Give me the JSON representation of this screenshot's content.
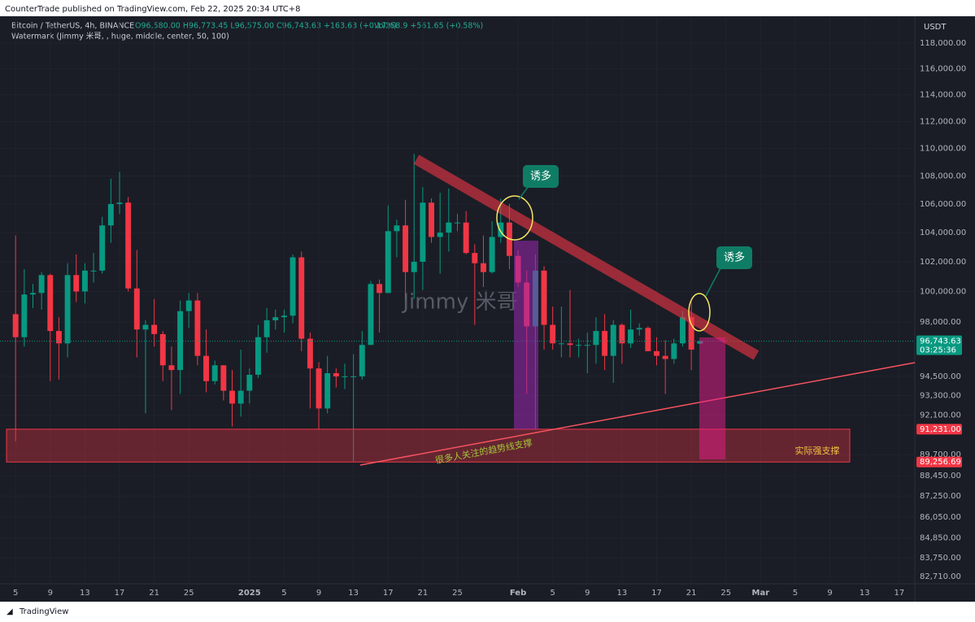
{
  "header": {
    "publisher": "CounterTrade published on TradingView.com, Feb 22, 2025 20:34 UTC+8",
    "symbol": "Bitcoin / TetherUS, 4h, BINANCE",
    "ohlc": "O96,580.00 H96,773.45 L96,575.00 C96,743.63 +163.63 (+0.17%)",
    "volume": "Vol258.9 +561.65 (+0.58%)",
    "indicator": "Watermark (Jimmy 米哥, , huge, middle, center, 50, 100)",
    "currency": "USDT"
  },
  "footer": {
    "logo": "TradingView"
  },
  "chart_data": {
    "type": "candlestick",
    "log_scale": true,
    "watermark": "Jimmy 米哥",
    "annotations": {
      "callout_1": "诱多",
      "callout_2": "诱多",
      "trendline": "很多人关注的趋势线支撑",
      "zone": "实际强支撑"
    },
    "countdown": "03:25:36",
    "price_tags": [
      {
        "value": 96743.63,
        "label": "96,743.63",
        "color": "#089981"
      },
      {
        "value": 91231,
        "label": "91,231.00",
        "color": "#f23645"
      },
      {
        "value": 89256.69,
        "label": "89,256.69",
        "color": "#f23645"
      }
    ],
    "up_color": "#089981",
    "down_color": "#f23645",
    "xlim": [
      -1.8,
      103.8
    ],
    "ylim": [
      82300,
      120000
    ],
    "xticks": [
      {
        "value": 0,
        "label": "5"
      },
      {
        "value": 4,
        "label": "9"
      },
      {
        "value": 8,
        "label": "13"
      },
      {
        "value": 12,
        "label": "17"
      },
      {
        "value": 16,
        "label": "21"
      },
      {
        "value": 20,
        "label": "25"
      },
      {
        "value": 27,
        "label": "2025"
      },
      {
        "value": 31,
        "label": "5"
      },
      {
        "value": 35,
        "label": "9"
      },
      {
        "value": 39,
        "label": "13"
      },
      {
        "value": 43,
        "label": "17"
      },
      {
        "value": 47,
        "label": "21"
      },
      {
        "value": 51,
        "label": "25"
      },
      {
        "value": 58,
        "label": "Feb"
      },
      {
        "value": 62,
        "label": "5"
      },
      {
        "value": 66,
        "label": "9"
      },
      {
        "value": 70,
        "label": "13"
      },
      {
        "value": 74,
        "label": "17"
      },
      {
        "value": 78,
        "label": "21"
      },
      {
        "value": 82,
        "label": "25"
      },
      {
        "value": 86,
        "label": "Mar"
      },
      {
        "value": 90,
        "label": "5"
      },
      {
        "value": 94,
        "label": "9"
      },
      {
        "value": 98,
        "label": "13"
      },
      {
        "value": 102,
        "label": "17"
      }
    ],
    "yticks": [
      {
        "value": 118000,
        "label": "118,000.00"
      },
      {
        "value": 116000,
        "label": "116,000.00"
      },
      {
        "value": 114000,
        "label": "114,000.00"
      },
      {
        "value": 112000,
        "label": "112,000.00"
      },
      {
        "value": 110000,
        "label": "110,000.00"
      },
      {
        "value": 108000,
        "label": "108,000.00"
      },
      {
        "value": 106000,
        "label": "106,000.00"
      },
      {
        "value": 104000,
        "label": "104,000.00"
      },
      {
        "value": 102000,
        "label": "102,000.00"
      },
      {
        "value": 100000,
        "label": "100,000.00"
      },
      {
        "value": 98000,
        "label": "98,000.00"
      },
      {
        "value": 94500,
        "label": "94,500.00"
      },
      {
        "value": 93300,
        "label": "93,300.00"
      },
      {
        "value": 92100,
        "label": "92,100.00"
      },
      {
        "value": 89700,
        "label": "89,700.00"
      },
      {
        "value": 88450,
        "label": "88,450.00"
      },
      {
        "value": 87250,
        "label": "87,250.00"
      },
      {
        "value": 86050,
        "label": "86,050.00"
      },
      {
        "value": 84850,
        "label": "84,850.00"
      },
      {
        "value": 83750,
        "label": "83,750.00"
      },
      {
        "value": 82710,
        "label": "82,710.00"
      }
    ],
    "x": [
      0,
      1,
      2,
      3,
      4,
      5,
      6,
      7,
      8,
      9,
      10,
      11,
      12,
      13,
      14,
      15,
      16,
      17,
      18,
      19,
      20,
      21,
      22,
      23,
      24,
      25,
      26,
      27,
      28,
      29,
      30,
      31,
      32,
      33,
      34,
      35,
      36,
      37,
      38,
      39,
      40,
      41,
      42,
      43,
      44,
      45,
      46,
      47,
      48,
      49,
      50,
      51,
      52,
      53,
      54,
      55,
      56,
      57,
      58,
      59,
      60,
      61,
      62,
      63,
      64,
      65,
      66,
      67,
      68,
      69,
      70,
      71,
      72,
      73,
      74,
      75,
      76,
      77,
      78,
      79
    ],
    "open": [
      98500,
      97000,
      99800,
      99900,
      101100,
      97400,
      96600,
      101100,
      100000,
      101400,
      101400,
      104500,
      106000,
      106100,
      100200,
      97500,
      97800,
      97200,
      95200,
      94900,
      98700,
      99400,
      95800,
      94200,
      95200,
      93600,
      92800,
      93600,
      94600,
      97000,
      98100,
      98300,
      98400,
      102300,
      96900,
      95000,
      92500,
      94700,
      94500,
      94500,
      94500,
      96500,
      100500,
      99900,
      104100,
      104500,
      101300,
      102000,
      106100,
      103700,
      104000,
      104700,
      104700,
      102600,
      101900,
      101300,
      103700,
      104700,
      102400,
      100600,
      97700,
      101400,
      97800,
      96600,
      96600,
      96500,
      96500,
      96500,
      97400,
      95800,
      97800,
      96600,
      97500,
      97600,
      96100,
      95800,
      95600,
      96600,
      98300,
      96580
    ],
    "high": [
      103800,
      101500,
      100500,
      101300,
      101200,
      98300,
      101900,
      102500,
      101900,
      102600,
      105100,
      107800,
      108300,
      106500,
      102800,
      98100,
      99500,
      97400,
      96400,
      99400,
      99900,
      99900,
      97500,
      95500,
      95200,
      94900,
      96200,
      95000,
      97800,
      98900,
      98800,
      98800,
      102500,
      102700,
      97300,
      95400,
      95800,
      95000,
      95300,
      95900,
      97400,
      100700,
      100800,
      105900,
      104900,
      106300,
      109600,
      107200,
      106400,
      106800,
      107100,
      105300,
      105500,
      103200,
      103800,
      104800,
      106400,
      106000,
      102800,
      101400,
      102500,
      101700,
      99000,
      99000,
      100100,
      96900,
      97300,
      98300,
      98500,
      98100,
      97900,
      98800,
      97900,
      97700,
      97000,
      96800,
      96900,
      98700,
      99500,
      96773.45
    ],
    "low": [
      90500,
      96400,
      98900,
      98800,
      94200,
      94300,
      95700,
      99300,
      99200,
      100600,
      101200,
      103300,
      105300,
      100000,
      95700,
      92200,
      96400,
      94200,
      92400,
      93400,
      97600,
      95200,
      93500,
      94000,
      93000,
      91400,
      92000,
      92800,
      94400,
      96000,
      97500,
      97300,
      97900,
      96100,
      92500,
      91200,
      92200,
      93800,
      93700,
      89300,
      94300,
      96500,
      97300,
      99900,
      102300,
      99500,
      99500,
      100100,
      103300,
      101200,
      102700,
      104100,
      102500,
      97800,
      100300,
      101200,
      103300,
      101500,
      100300,
      93400,
      91200,
      96200,
      96200,
      95700,
      95700,
      95700,
      94700,
      95300,
      94900,
      94100,
      95300,
      96300,
      97100,
      96100,
      95200,
      93400,
      95300,
      96400,
      94900,
      96575
    ],
    "close": [
      97000,
      99800,
      99900,
      101100,
      97400,
      96600,
      101100,
      100000,
      101400,
      101400,
      104500,
      106000,
      106100,
      100200,
      97500,
      97800,
      97200,
      95200,
      94900,
      98700,
      99400,
      95800,
      94200,
      95200,
      93600,
      92800,
      93600,
      94600,
      97000,
      98100,
      98300,
      98400,
      102300,
      96900,
      95000,
      92500,
      94700,
      94500,
      94500,
      94500,
      96500,
      100500,
      99900,
      104100,
      104500,
      101300,
      102000,
      106100,
      103700,
      104000,
      104700,
      104700,
      102600,
      101900,
      101300,
      103700,
      104700,
      102400,
      100600,
      97700,
      101400,
      97800,
      96600,
      96600,
      96500,
      96500,
      96500,
      97400,
      95800,
      97800,
      96600,
      97500,
      97600,
      96100,
      95800,
      95600,
      96600,
      98300,
      96200,
      96743.63
    ]
  }
}
